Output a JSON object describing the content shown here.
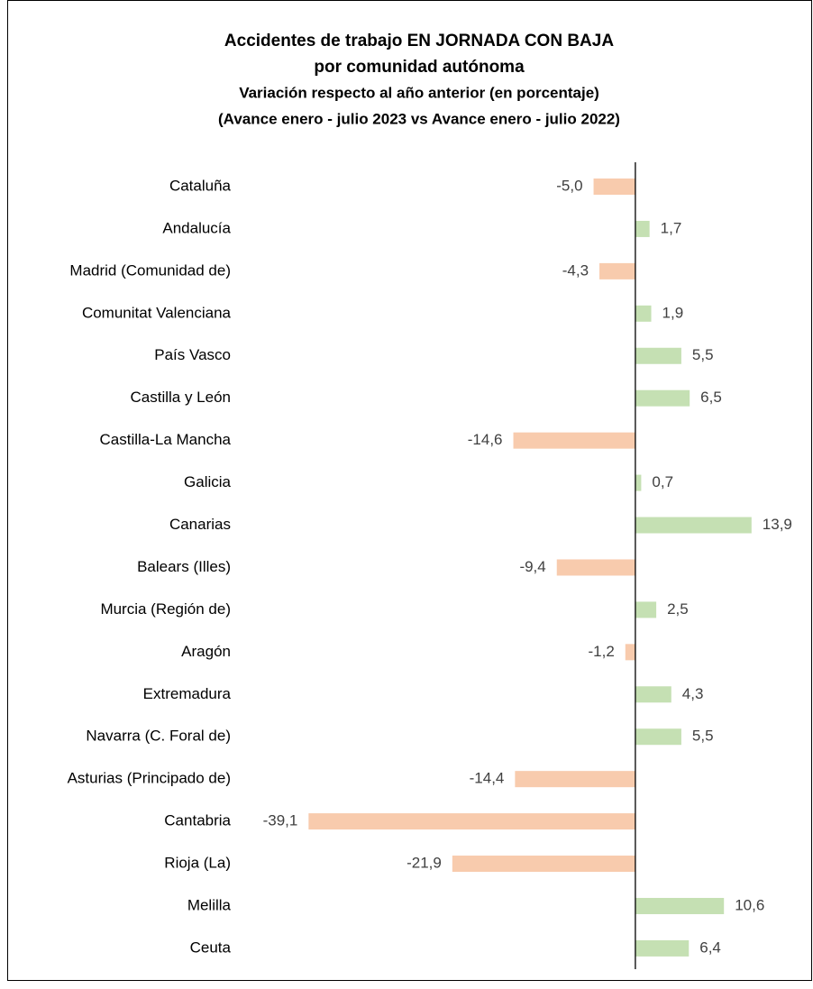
{
  "chart_data": {
    "type": "bar",
    "orientation": "horizontal",
    "title": [
      "Accidentes de trabajo EN JORNADA CON BAJA",
      "por comunidad autónoma"
    ],
    "subtitle": [
      "Variación respecto al año anterior (en porcentaje)",
      "(Avance enero - julio 2023 vs Avance enero - julio 2022)"
    ],
    "categories": [
      "Cataluña",
      "Andalucía",
      "Madrid (Comunidad de)",
      "Comunitat Valenciana",
      "País Vasco",
      "Castilla y León",
      "Castilla-La Mancha",
      "Galicia",
      "Canarias",
      "Balears (Illes)",
      "Murcia (Región de)",
      "Aragón",
      "Extremadura",
      "Navarra (C. Foral de)",
      "Asturias (Principado de)",
      "Cantabria",
      "Rioja (La)",
      "Melilla",
      "Ceuta"
    ],
    "values": [
      -5.0,
      1.7,
      -4.3,
      1.9,
      5.5,
      6.5,
      -14.6,
      0.7,
      13.9,
      -9.4,
      2.5,
      -1.2,
      4.3,
      5.5,
      -14.4,
      -39.1,
      -21.9,
      10.6,
      6.4
    ],
    "value_labels": [
      "-5,0",
      "1,7",
      "-4,3",
      "1,9",
      "5,5",
      "6,5",
      "-14,6",
      "0,7",
      "13,9",
      "-9,4",
      "2,5",
      "-1,2",
      "4,3",
      "5,5",
      "-14,4",
      "-39,1",
      "-21,9",
      "10,6",
      "6,4"
    ],
    "positive_color": "#c5e0b3",
    "negative_color": "#f8cbad",
    "xlim": [
      -40,
      15
    ]
  }
}
